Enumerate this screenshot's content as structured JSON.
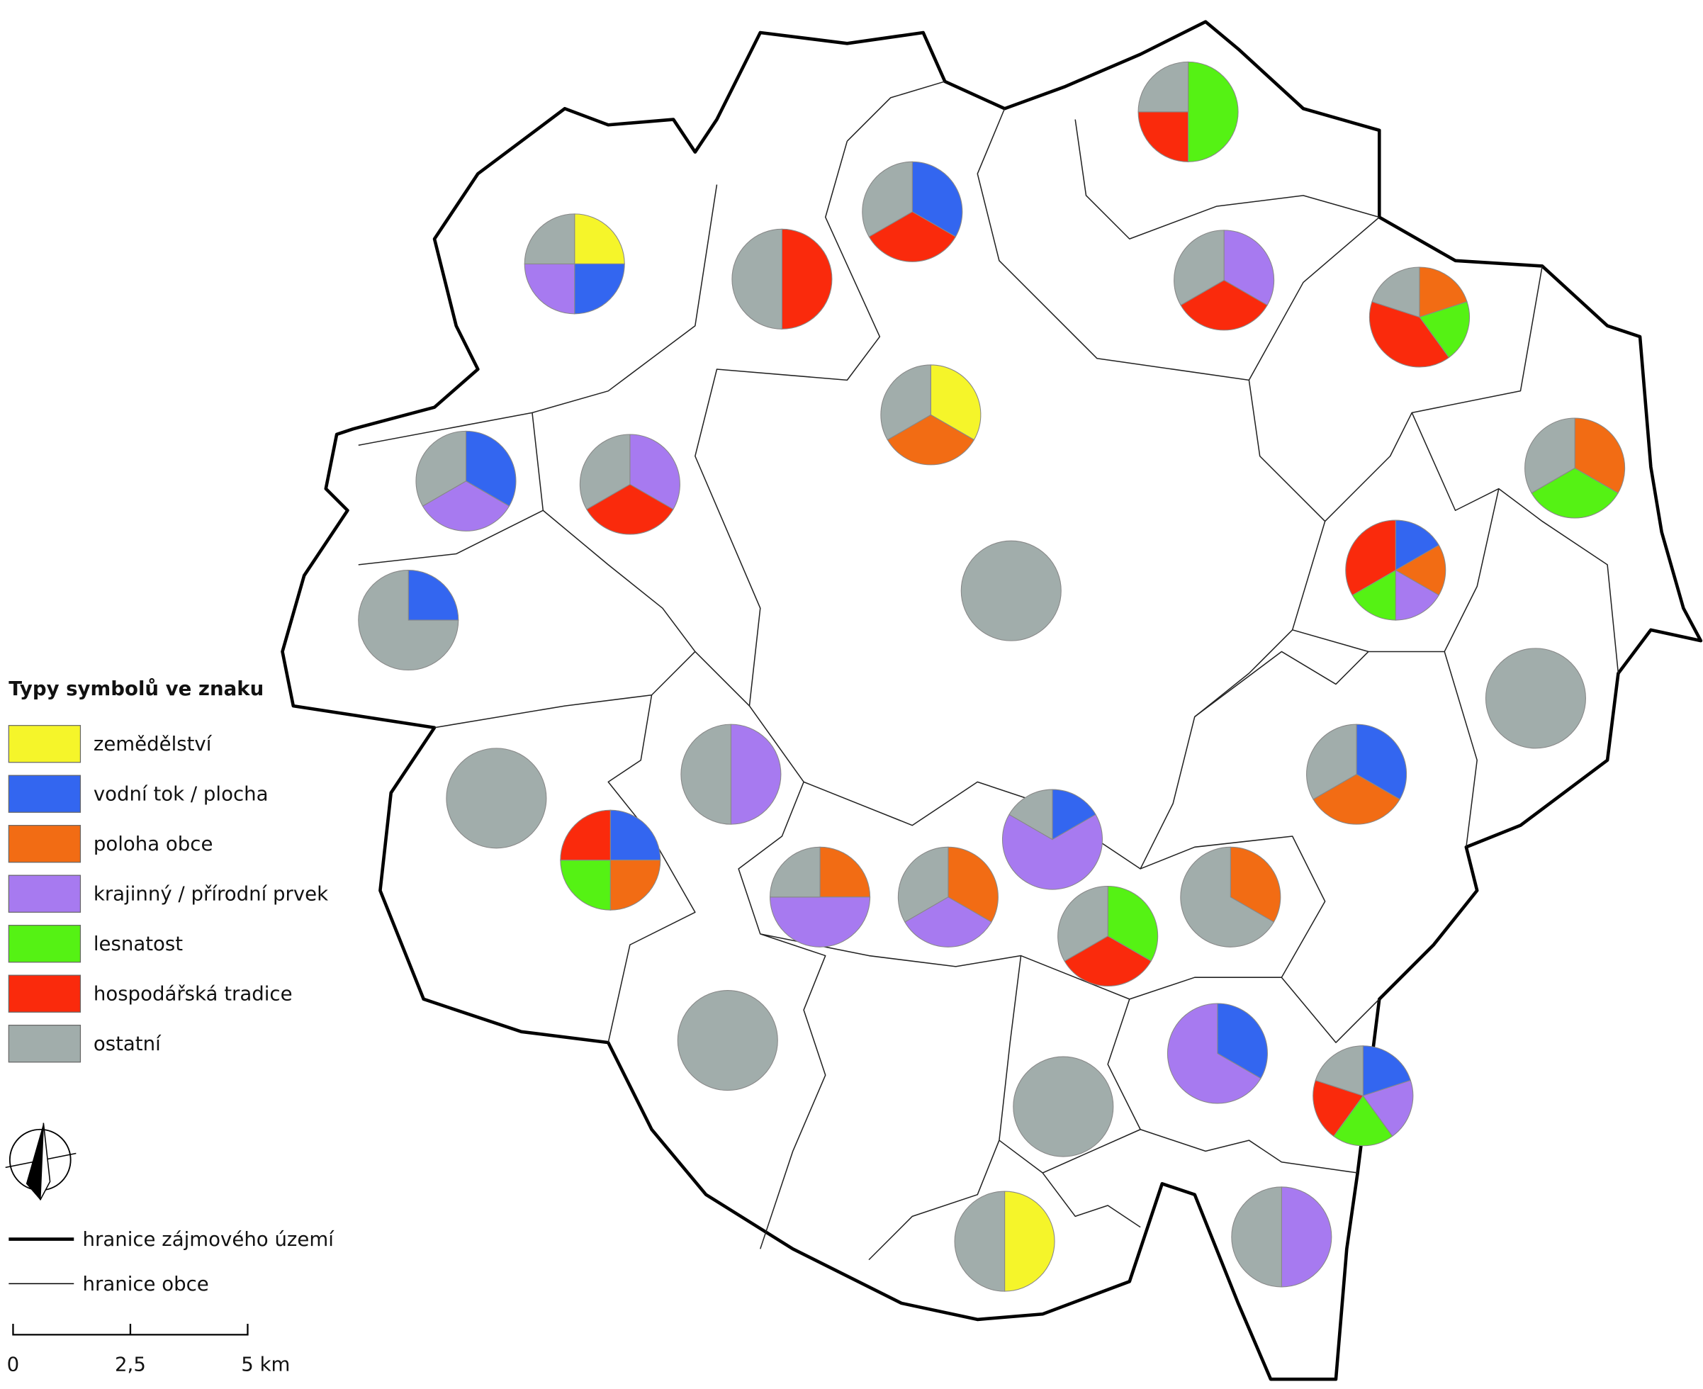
{
  "legend": {
    "title": "Typy symbolů ve znaku",
    "categories": [
      {
        "label": "zemědělství",
        "color": "#f5f52a"
      },
      {
        "label": "vodní tok / plocha",
        "color": "#3366f0"
      },
      {
        "label": "poloha obce",
        "color": "#f26c14"
      },
      {
        "label": "krajinný / přírodní prvek",
        "color": "#a77af0"
      },
      {
        "label": "lesnatost",
        "color": "#55f214"
      },
      {
        "label": "hospodářská tradice",
        "color": "#fa2a0c"
      },
      {
        "label": "ostatní",
        "color": "#a1adab"
      }
    ]
  },
  "boundary_legend": [
    "hranice zájmového území",
    "hranice obce"
  ],
  "scale_bar": {
    "labels": [
      "0",
      "2,5",
      "5 km"
    ]
  },
  "pies": [
    {
      "values": [
        1,
        1,
        0,
        1,
        0,
        0,
        1
      ]
    },
    {
      "values": [
        0,
        0,
        0,
        0,
        0,
        1,
        1
      ]
    },
    {
      "values": [
        0,
        1,
        0,
        0,
        0,
        1,
        1
      ]
    },
    {
      "values": [
        0,
        0,
        0,
        0,
        2,
        1,
        1
      ]
    },
    {
      "values": [
        0,
        0,
        0,
        1,
        0,
        1,
        1
      ]
    },
    {
      "values": [
        0,
        0,
        1,
        0,
        1,
        2,
        1
      ]
    },
    {
      "values": [
        1,
        0,
        1,
        0,
        0,
        0,
        1
      ]
    },
    {
      "values": [
        0,
        1,
        0,
        1,
        0,
        0,
        1
      ]
    },
    {
      "values": [
        0,
        0,
        0,
        1,
        0,
        1,
        1
      ]
    },
    {
      "values": [
        0,
        1,
        0,
        0,
        0,
        0,
        3
      ]
    },
    {
      "values": [
        0,
        0,
        1,
        0,
        1,
        0,
        1
      ]
    },
    {
      "values": [
        0,
        1,
        1,
        1,
        1,
        2,
        0
      ]
    },
    {
      "values": [
        0,
        0,
        0,
        0,
        0,
        0,
        1
      ]
    },
    {
      "values": [
        0,
        0,
        0,
        0,
        0,
        0,
        1
      ]
    },
    {
      "values": [
        0,
        0,
        0,
        0,
        0,
        0,
        1
      ]
    },
    {
      "values": [
        0,
        0,
        0,
        1,
        0,
        0,
        1
      ]
    },
    {
      "values": [
        0,
        1,
        1,
        0,
        0,
        0,
        1
      ]
    },
    {
      "values": [
        0,
        1,
        1,
        0,
        1,
        1,
        0
      ]
    },
    {
      "values": [
        0,
        0,
        1,
        2,
        0,
        0,
        1
      ]
    },
    {
      "values": [
        0,
        0,
        1,
        1,
        0,
        0,
        1
      ]
    },
    {
      "values": [
        0,
        1,
        0,
        4,
        0,
        0,
        1
      ]
    },
    {
      "values": [
        0,
        0,
        0,
        0,
        1,
        1,
        1
      ]
    },
    {
      "values": [
        0,
        0,
        1,
        0,
        0,
        0,
        2
      ]
    },
    {
      "values": [
        0,
        0,
        0,
        0,
        0,
        0,
        1
      ]
    },
    {
      "values": [
        0,
        0,
        0,
        0,
        0,
        0,
        1
      ]
    },
    {
      "values": [
        0,
        1,
        0,
        2,
        0,
        0,
        0
      ]
    },
    {
      "values": [
        0,
        1,
        0,
        1,
        1,
        1,
        1
      ]
    },
    {
      "values": [
        1,
        0,
        0,
        0,
        0,
        0,
        1
      ]
    },
    {
      "values": [
        0,
        0,
        0,
        1,
        0,
        0,
        1
      ]
    }
  ]
}
